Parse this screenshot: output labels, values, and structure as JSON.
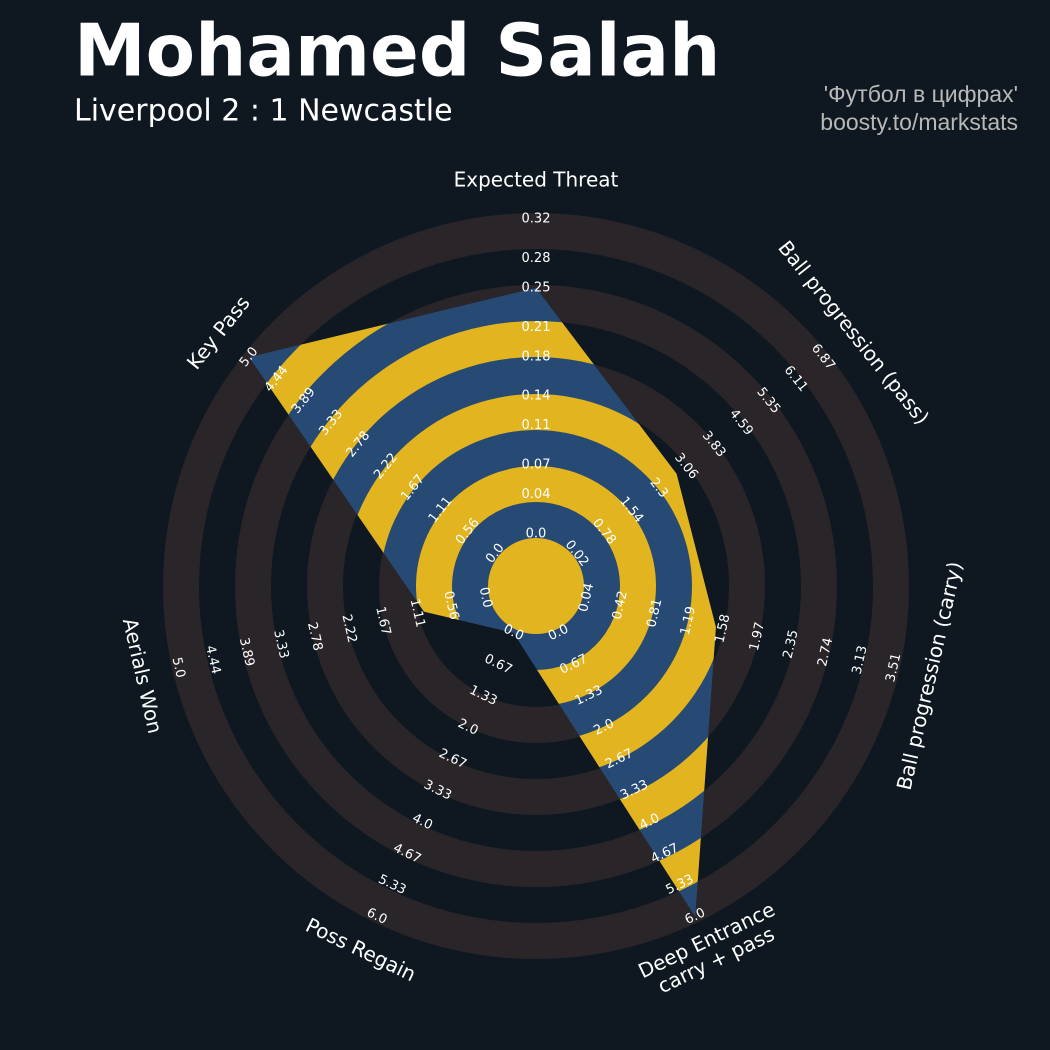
{
  "chart_data": {
    "type": "radar",
    "title": "Mohamed Salah",
    "subtitle": "Liverpool 2 : 1 Newcastle",
    "credits": [
      "'Футбол в цифрах'",
      "boosty.to/markstats"
    ],
    "categories": [
      "Expected Threat",
      "Ball progression (pass)",
      "Ball progression (carry)",
      "Deep Entrance\ncarry + pass",
      "Poss Regain",
      "Aerials Won",
      "Key Pass"
    ],
    "values": [
      0.25,
      2.8,
      1.5,
      6.0,
      0,
      1.0,
      5.0
    ],
    "lims": [
      [
        0,
        0.32
      ],
      [
        0.02,
        6.87
      ],
      [
        0.04,
        3.51
      ],
      [
        0,
        6
      ],
      [
        0,
        6
      ],
      [
        0,
        5
      ],
      [
        0,
        5
      ]
    ],
    "ticks": [
      [
        {
          "value": 0,
          "label": "0.0"
        },
        0.04,
        0.07,
        0.11,
        0.14,
        0.18,
        0.21,
        0.25,
        0.28,
        0.32
      ],
      [
        0.02,
        0.78,
        1.54,
        2.3,
        3.06,
        3.83,
        4.59,
        5.35,
        6.11,
        6.87
      ],
      [
        0.04,
        0.42,
        0.81,
        1.19,
        1.58,
        1.97,
        2.35,
        2.74,
        3.13,
        3.51
      ],
      [
        {
          "value": 0,
          "label": "0.0"
        },
        0.67,
        1.33,
        {
          "value": 2,
          "label": "2.0"
        },
        2.67,
        3.33,
        {
          "value": 4,
          "label": "4.0"
        },
        4.67,
        5.33,
        {
          "value": 6,
          "label": "6.0"
        }
      ],
      [
        {
          "value": 0,
          "label": "0.0"
        },
        0.67,
        1.33,
        {
          "value": 2,
          "label": "2.0"
        },
        2.67,
        3.33,
        {
          "value": 4,
          "label": "4.0"
        },
        4.67,
        5.33,
        {
          "value": 6,
          "label": "6.0"
        }
      ],
      [
        {
          "value": 0,
          "label": "0.0"
        },
        0.56,
        1.11,
        1.67,
        2.22,
        2.78,
        3.33,
        3.89,
        4.44,
        {
          "value": 5,
          "label": "5.0"
        }
      ],
      [
        {
          "value": 0,
          "label": "0.0"
        },
        0.56,
        1.11,
        1.67,
        2.22,
        2.78,
        3.33,
        3.89,
        4.44,
        {
          "value": 5,
          "label": "5.0"
        }
      ]
    ],
    "color": "#274a75",
    "ring_color": "#e2b41f"
  }
}
